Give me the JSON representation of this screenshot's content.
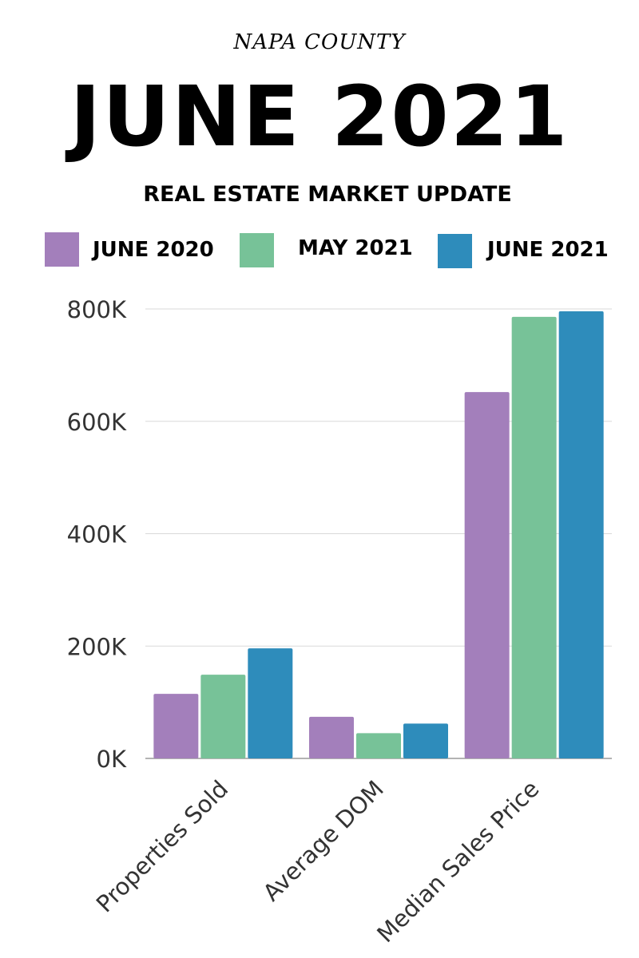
{
  "header": {
    "county": "NAPA COUNTY",
    "title": "JUNE 2021",
    "subtitle": "REAL ESTATE MARKET UPDATE"
  },
  "chart_data": {
    "type": "bar",
    "categories": [
      "Properties Sold",
      "Average DOM",
      "Median Sales Price"
    ],
    "series": [
      {
        "name": "JUNE 2020",
        "color": "#a37fbb",
        "values": [
          115000,
          74000,
          652000
        ]
      },
      {
        "name": "MAY 2021",
        "color": "#77c298",
        "values": [
          149000,
          45000,
          786000
        ]
      },
      {
        "name": "JUNE 2021",
        "color": "#2e8cbb",
        "values": [
          196000,
          62000,
          796000
        ]
      }
    ],
    "yticks": [
      "0K",
      "200K",
      "400K",
      "600K",
      "800K"
    ],
    "ylim": [
      0,
      800000
    ],
    "grid": true,
    "legend_position": "top"
  }
}
